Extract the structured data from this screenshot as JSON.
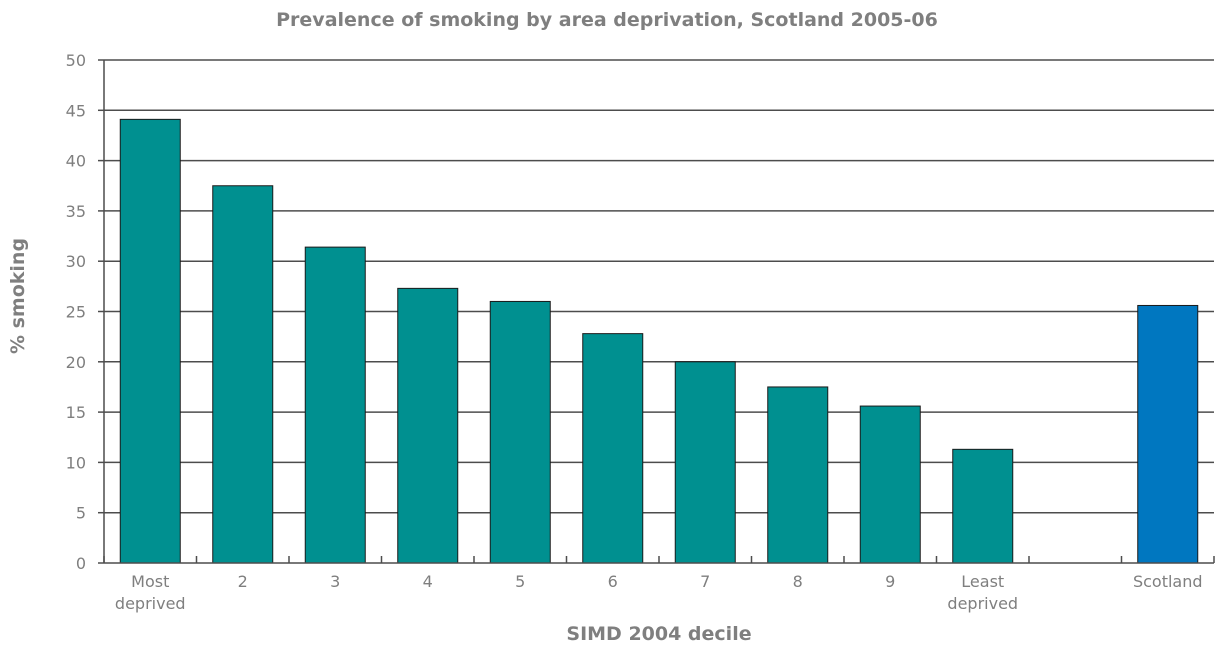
{
  "chart_data": {
    "type": "bar",
    "title": "Prevalence of smoking by area deprivation, Scotland 2005-06",
    "xlabel": "SIMD 2004 decile",
    "ylabel": "% smoking",
    "ylim": [
      0,
      50
    ],
    "yticks": [
      "0",
      "5",
      "10",
      "15",
      "20",
      "25",
      "30",
      "35",
      "40",
      "45",
      "50"
    ],
    "grid": true,
    "categories": [
      [
        "Most",
        "deprived"
      ],
      [
        "2"
      ],
      [
        "3"
      ],
      [
        "4"
      ],
      [
        "5"
      ],
      [
        "6"
      ],
      [
        "7"
      ],
      [
        "8"
      ],
      [
        "9"
      ],
      [
        "Least",
        "deprived"
      ],
      [
        ""
      ],
      [
        "Scotland"
      ]
    ],
    "values": [
      44.1,
      37.5,
      31.4,
      27.3,
      26.0,
      22.8,
      20.0,
      17.5,
      15.6,
      11.3,
      null,
      25.6
    ],
    "colors": {
      "decile": "#009090",
      "scotland": "#0077c0",
      "grid": "#4d4d4d",
      "text": "#7f7f7f"
    }
  }
}
